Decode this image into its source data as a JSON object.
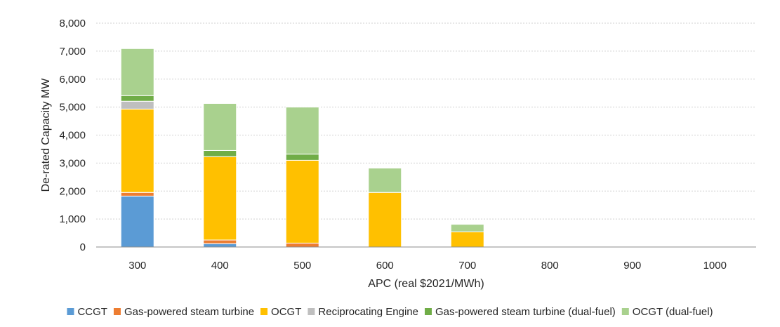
{
  "chart_data": {
    "type": "bar",
    "stacked": true,
    "categories": [
      "300",
      "400",
      "500",
      "600",
      "700",
      "800",
      "900",
      "1000"
    ],
    "series": [
      {
        "name": "CCGT",
        "color": "#5b9bd5",
        "values": [
          1820,
          120,
          0,
          0,
          0,
          0,
          0,
          0
        ]
      },
      {
        "name": "Gas-powered steam turbine",
        "color": "#ed7d31",
        "values": [
          130,
          130,
          140,
          0,
          0,
          0,
          0,
          0
        ]
      },
      {
        "name": "OCGT",
        "color": "#ffc000",
        "values": [
          2980,
          2980,
          2960,
          1950,
          540,
          0,
          0,
          0
        ]
      },
      {
        "name": "Reciprocating Engine",
        "color": "#bfbfbf",
        "values": [
          280,
          0,
          0,
          0,
          0,
          0,
          0,
          0
        ]
      },
      {
        "name": "Gas-powered steam turbine (dual-fuel)",
        "color": "#70ad47",
        "values": [
          200,
          220,
          220,
          0,
          0,
          0,
          0,
          0
        ]
      },
      {
        "name": "OCGT (dual-fuel)",
        "color": "#a9d18e",
        "values": [
          1680,
          1680,
          1680,
          870,
          270,
          0,
          0,
          0
        ]
      }
    ],
    "xlabel": "APC (real $2021/MWh)",
    "ylabel": "De-rated Capacity MW",
    "ylim": [
      0,
      8000
    ],
    "yticks": [
      0,
      1000,
      2000,
      3000,
      4000,
      5000,
      6000,
      7000,
      8000
    ],
    "ytick_labels": [
      "0",
      "1,000",
      "2,000",
      "3,000",
      "4,000",
      "5,000",
      "6,000",
      "7,000",
      "8,000"
    ],
    "grid": true,
    "legend_position": "bottom"
  }
}
